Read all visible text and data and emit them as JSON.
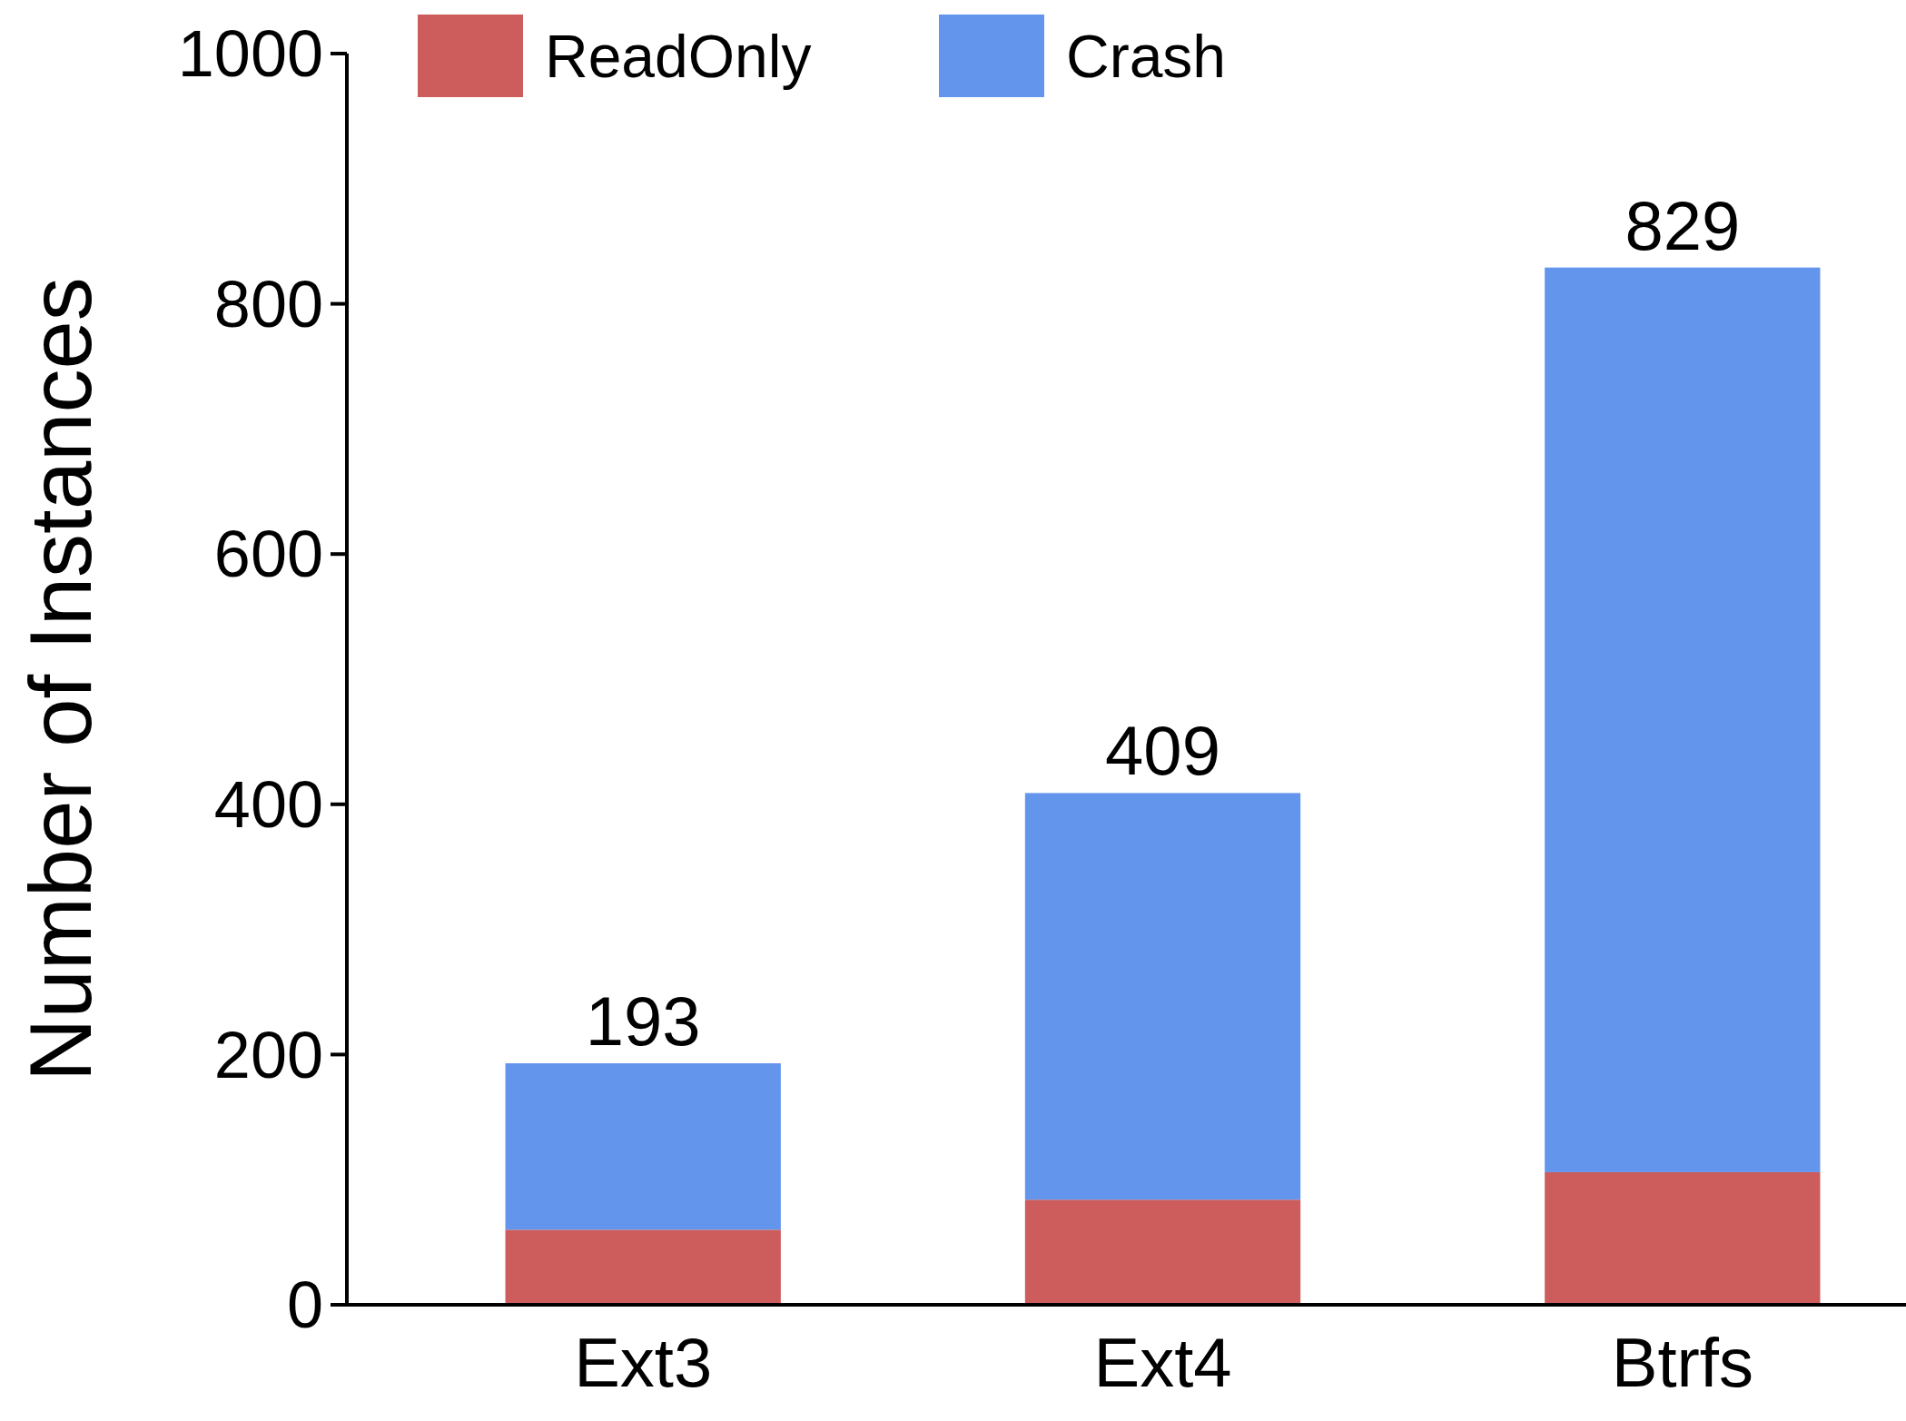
{
  "chart_data": {
    "type": "bar",
    "ylabel": "Number of Instances",
    "categories": [
      "Ext3",
      "Ext4",
      "Btrfs"
    ],
    "stacked": true,
    "series": [
      {
        "name": "ReadOnly",
        "color": "#cd5c5c",
        "values": [
          60,
          84,
          106
        ]
      },
      {
        "name": "Crash",
        "color": "#6495ed",
        "values": [
          133,
          325,
          723
        ]
      }
    ],
    "totals": [
      "193",
      "409",
      "829"
    ],
    "ylim": [
      0,
      1000
    ],
    "yticks": [
      0,
      200,
      400,
      600,
      800,
      1000
    ],
    "grid": false,
    "legend": "top"
  }
}
